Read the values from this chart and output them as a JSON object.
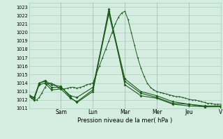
{
  "xlabel": "Pression niveau de la mer( hPa )",
  "background_color": "#d4ede0",
  "grid_color": "#a0c8b0",
  "line_color": "#1a5c1a",
  "ylim": [
    1011,
    1023.5
  ],
  "yticks": [
    1011,
    1012,
    1013,
    1014,
    1015,
    1016,
    1017,
    1018,
    1019,
    1020,
    1021,
    1022,
    1023
  ],
  "xlim": [
    0,
    300
  ],
  "xtick_positions": [
    50,
    100,
    150,
    200,
    250,
    300
  ],
  "xtick_labels": [
    "Sam",
    "Lun",
    "Mar",
    "Mer",
    "Jeu",
    "V"
  ],
  "lines": [
    {
      "x": [
        0,
        4,
        8,
        12,
        16,
        20,
        25,
        30,
        35,
        40,
        45,
        50,
        55,
        60,
        65,
        70,
        75,
        80,
        85,
        90,
        95,
        100,
        105,
        110,
        115,
        120,
        125,
        130,
        135,
        140,
        145,
        150,
        155,
        160,
        165,
        170,
        175,
        180,
        185,
        190,
        195,
        200,
        205,
        210,
        215,
        220,
        225,
        230,
        235,
        240,
        245,
        250,
        255,
        260,
        265,
        270,
        275,
        280,
        285,
        290,
        295,
        300
      ],
      "y": [
        1012.5,
        1012.2,
        1012.0,
        1012.0,
        1012.3,
        1012.8,
        1013.5,
        1014.0,
        1014.0,
        1013.8,
        1013.5,
        1013.3,
        1013.3,
        1013.4,
        1013.5,
        1013.5,
        1013.4,
        1013.5,
        1013.6,
        1013.8,
        1013.9,
        1014.0,
        1015.0,
        1016.0,
        1017.0,
        1018.0,
        1019.0,
        1020.0,
        1021.0,
        1021.8,
        1022.3,
        1022.5,
        1021.5,
        1020.0,
        1018.5,
        1017.0,
        1015.8,
        1014.8,
        1014.0,
        1013.5,
        1013.2,
        1013.0,
        1012.9,
        1012.8,
        1012.7,
        1012.6,
        1012.5,
        1012.4,
        1012.4,
        1012.3,
        1012.2,
        1012.1,
        1012.0,
        1012.0,
        1011.9,
        1011.8,
        1011.7,
        1011.6,
        1011.6,
        1011.5,
        1011.5,
        1011.5
      ],
      "lw": 0.7,
      "marker": "D",
      "markersize": 1.2
    },
    {
      "x": [
        0,
        8,
        16,
        25,
        35,
        50,
        65,
        75,
        100,
        125,
        150,
        175,
        200,
        225,
        250,
        275,
        300
      ],
      "y": [
        1012.5,
        1012.0,
        1014.0,
        1014.2,
        1013.5,
        1013.5,
        1012.5,
        1012.3,
        1013.5,
        1022.5,
        1014.5,
        1013.0,
        1012.5,
        1011.8,
        1011.5,
        1011.3,
        1011.3
      ],
      "lw": 0.8,
      "marker": "D",
      "markersize": 2.0
    },
    {
      "x": [
        0,
        8,
        16,
        25,
        35,
        50,
        65,
        75,
        100,
        125,
        150,
        175,
        200,
        225,
        250,
        275,
        300
      ],
      "y": [
        1012.5,
        1012.2,
        1013.8,
        1014.0,
        1013.2,
        1013.3,
        1012.2,
        1011.8,
        1013.2,
        1022.2,
        1014.2,
        1012.8,
        1012.3,
        1011.6,
        1011.5,
        1011.2,
        1011.2
      ],
      "lw": 0.8,
      "marker": "D",
      "markersize": 2.0
    },
    {
      "x": [
        0,
        8,
        16,
        25,
        35,
        50,
        65,
        75,
        100,
        125,
        150,
        175,
        200,
        225,
        250,
        275,
        300
      ],
      "y": [
        1012.6,
        1012.3,
        1014.0,
        1014.3,
        1013.8,
        1013.6,
        1012.3,
        1011.7,
        1013.0,
        1022.8,
        1013.8,
        1012.5,
        1012.2,
        1011.5,
        1011.3,
        1011.2,
        1011.2
      ],
      "lw": 0.8,
      "marker": "D",
      "markersize": 2.0
    }
  ]
}
